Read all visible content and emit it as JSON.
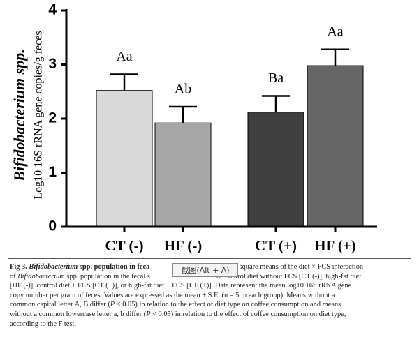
{
  "chart_data": {
    "type": "bar",
    "ylabel_lines": [
      "Bifidobacterium spp.",
      "Log10 16S rRNA gene copies/g feces"
    ],
    "categories": [
      "CT (-)",
      "HF (-)",
      "CT (+)",
      "HF (+)"
    ],
    "values": [
      2.52,
      1.92,
      2.12,
      2.98
    ],
    "errors": [
      0.3,
      0.3,
      0.3,
      0.3
    ],
    "labels": [
      "Aa",
      "Ab",
      "Ba",
      "Aa"
    ],
    "colors": [
      "#d9d9d9",
      "#a6a6a6",
      "#3f3f3f",
      "#666666"
    ],
    "ylim": [
      0,
      4
    ],
    "yticks": [
      0,
      1,
      2,
      3,
      4
    ],
    "grid": false
  },
  "caption": {
    "lines": [
      [
        {
          "t": "Fig 3. ",
          "b": true
        },
        {
          "t": "Bifidobacterium",
          "b": true,
          "i": true
        },
        {
          "t": " spp. population in feca",
          "b": true
        },
        {
          "t": "re least-square means of the diet × FCS interaction",
          "gap": true
        }
      ],
      [
        {
          "t": "of "
        },
        {
          "t": "Bifidobacterium",
          "i": true
        },
        {
          "t": " spp. population in the fecal s"
        },
        {
          "t": "he control diet without FCS [CT (-)], high-fat diet",
          "gap": true
        }
      ],
      [
        {
          "t": "[HF (-)], control diet + FCS [CT (+)], or high-fat diet + FCS [HF (+)]. Data represent the mean log10 16S rRNA gene"
        }
      ],
      [
        {
          "t": "copy number per gram of feces. Values are expressed as the mean ± S.E. (n = 5 in each group). Means without a"
        }
      ],
      [
        {
          "t": "common capital letter A, B differ ("
        },
        {
          "t": "P",
          "i": true
        },
        {
          "t": " < 0.05) in relation to the effect of diet type on coffee consumption and means"
        }
      ],
      [
        {
          "t": "without a common lowercase letter a, b differ ("
        },
        {
          "t": "P",
          "i": true
        },
        {
          "t": " < 0.05) in relation to the effect of coffee consumption on diet type,"
        }
      ],
      [
        {
          "t": "according to the F test."
        }
      ]
    ]
  },
  "overlay": "截图(Alt + A)"
}
